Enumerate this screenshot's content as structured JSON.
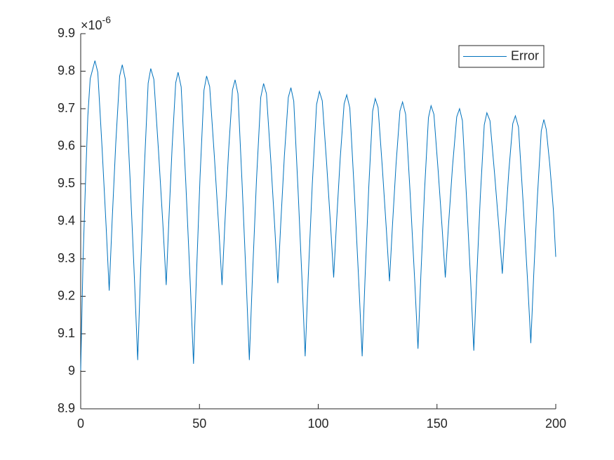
{
  "chart_data": {
    "type": "line",
    "y_axis_exponent": {
      "base": "×10",
      "power": "-6"
    },
    "x": [
      0,
      1,
      2,
      3,
      4,
      6,
      7.2,
      9,
      10.7,
      12,
      13.2,
      14.75,
      16.4,
      17.5,
      18.8,
      20.75,
      22.6,
      24,
      25.2,
      26.75,
      28.4,
      29.5,
      30.8,
      32.75,
      34.6,
      36,
      37.1,
      38.5,
      40,
      41,
      42.3,
      44.25,
      46.1,
      47.5,
      48.7,
      50.25,
      51.9,
      53,
      54.3,
      56.25,
      58.1,
      59.5,
      60.7,
      62.25,
      63.9,
      65,
      66.2,
      68,
      69.7,
      71,
      72.3,
      74,
      75.8,
      77,
      78.2,
      80,
      81.7,
      83,
      84.2,
      85.75,
      87.4,
      88.5,
      89.7,
      91.5,
      93.2,
      94.5,
      95.8,
      97.5,
      99.3,
      100.5,
      101.7,
      103.5,
      105.2,
      106.5,
      107.7,
      109.25,
      110.9,
      112,
      113.3,
      115.25,
      117.1,
      118.5,
      119.7,
      121.25,
      122.9,
      124,
      125.2,
      127,
      128.7,
      130,
      131.2,
      132.75,
      134.4,
      135.5,
      136.8,
      138.75,
      140.6,
      142,
      143.2,
      144.75,
      146.4,
      147.5,
      148.7,
      150.5,
      152.2,
      153.5,
      154.8,
      156.5,
      158.3,
      159.5,
      160.7,
      162.5,
      164.2,
      165.5,
      166.7,
      168.25,
      169.9,
      171,
      172.3,
      174.25,
      176.1,
      177.5,
      178.7,
      180.25,
      181.9,
      183,
      184.3,
      186.25,
      188.1,
      189.5,
      190.7,
      192.25,
      193.9,
      195,
      196,
      197.5,
      199,
      200
    ],
    "series": [
      {
        "name": "Error",
        "color": "#0072bd",
        "values": [
          9.003,
          9.3,
          9.5,
          9.68,
          9.78,
          9.828,
          9.797,
          9.595,
          9.387,
          9.215,
          9.396,
          9.606,
          9.787,
          9.817,
          9.778,
          9.518,
          9.25,
          9.03,
          9.263,
          9.535,
          9.768,
          9.807,
          9.778,
          9.588,
          9.392,
          9.23,
          9.4,
          9.599,
          9.769,
          9.797,
          9.758,
          9.502,
          9.238,
          9.02,
          9.25,
          9.519,
          9.749,
          9.787,
          9.759,
          9.575,
          9.386,
          9.23,
          9.394,
          9.586,
          9.75,
          9.777,
          9.74,
          9.493,
          9.239,
          9.03,
          9.251,
          9.509,
          9.73,
          9.767,
          9.74,
          9.565,
          9.384,
          9.235,
          9.391,
          9.574,
          9.73,
          9.756,
          9.72,
          9.484,
          9.24,
          9.04,
          9.252,
          9.499,
          9.711,
          9.746,
          9.721,
          9.558,
          9.389,
          9.25,
          9.396,
          9.567,
          9.713,
          9.737,
          9.702,
          9.472,
          9.235,
          9.04,
          9.246,
          9.487,
          9.693,
          9.727,
          9.703,
          9.542,
          9.376,
          9.24,
          9.383,
          9.551,
          9.694,
          9.718,
          9.685,
          9.468,
          9.244,
          9.06,
          9.254,
          9.481,
          9.676,
          9.708,
          9.685,
          9.534,
          9.378,
          9.25,
          9.385,
          9.543,
          9.678,
          9.7,
          9.668,
          9.455,
          9.236,
          9.055,
          9.245,
          9.467,
          9.657,
          9.689,
          9.668,
          9.526,
          9.38,
          9.26,
          9.386,
          9.534,
          9.66,
          9.681,
          9.651,
          9.451,
          9.245,
          9.075,
          9.254,
          9.462,
          9.641,
          9.671,
          9.645,
          9.55,
          9.43,
          9.305
        ]
      }
    ],
    "xlim": [
      0,
      200
    ],
    "xticks": [
      0,
      50,
      100,
      150,
      200
    ],
    "ylim": [
      8.9,
      9.9
    ],
    "yticks": [
      8.9,
      9,
      9.1,
      9.2,
      9.3,
      9.4,
      9.5,
      9.6,
      9.7,
      9.8,
      9.9
    ],
    "legend": "top-right"
  }
}
